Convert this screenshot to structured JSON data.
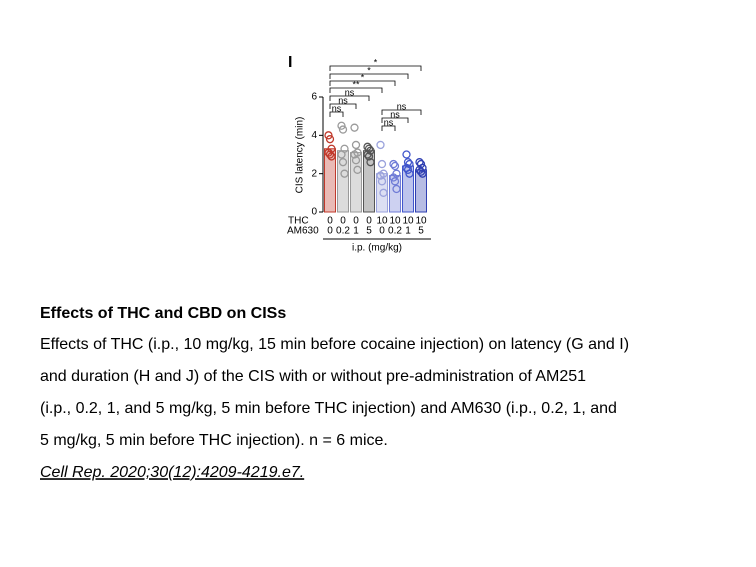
{
  "panel_label": "I",
  "chart_data": {
    "type": "bar",
    "y_label": "CIS latency (min)",
    "x_label": "i.p. (mg/kg)",
    "category_rows": [
      {
        "name": "THC",
        "labels": [
          "0",
          "0",
          "0",
          "0",
          "10",
          "10",
          "10",
          "10"
        ]
      },
      {
        "name": "AM630",
        "labels": [
          "0",
          "0.2",
          "1",
          "5",
          "0",
          "0.2",
          "1",
          "5"
        ]
      }
    ],
    "values": [
      3.3,
      3.2,
      3.1,
      3.2,
      2.0,
      1.9,
      2.4,
      2.2
    ],
    "points": [
      [
        4.0,
        3.8,
        3.3,
        3.1,
        3.0,
        2.9
      ],
      [
        4.5,
        4.3,
        3.3,
        3.0,
        2.6,
        2.0
      ],
      [
        4.4,
        3.5,
        3.1,
        3.0,
        2.7,
        2.2
      ],
      [
        3.4,
        3.3,
        3.2,
        3.0,
        2.9,
        2.6
      ],
      [
        3.5,
        2.5,
        2.0,
        1.9,
        1.6,
        1.0
      ],
      [
        2.5,
        2.4,
        2.0,
        1.8,
        1.6,
        1.2
      ],
      [
        3.0,
        2.6,
        2.5,
        2.3,
        2.2,
        2.0
      ],
      [
        2.6,
        2.5,
        2.3,
        2.2,
        2.1,
        2.0
      ]
    ],
    "colors": [
      "#c0392b",
      "#9a9a9a",
      "#9a9a9a",
      "#555555",
      "#9aa2dc",
      "#6f7bd6",
      "#4156cc",
      "#2f3fb2"
    ],
    "ylim": [
      0,
      6
    ],
    "yticks": [
      0,
      2,
      4,
      6
    ],
    "annotations": [
      "*",
      "*",
      "*",
      "**",
      "ns",
      "ns",
      "ns",
      "ns",
      "ns",
      "ns"
    ]
  },
  "caption": {
    "title": "Effects of THC and CBD on CISs",
    "lines": [
      "Effects of THC (i.p., 10 mg/kg, 15 min before cocaine injection) on latency (G and I)",
      "and duration (H and J) of the CIS with or without pre-administration of AM251",
      "(i.p., 0.2, 1, and 5 mg/kg, 5 min before THC injection) and AM630 (i.p., 0.2, 1, and",
      "5 mg/kg, 5 min before THC injection). n = 6 mice."
    ],
    "citation": "Cell Rep. 2020;30(12):4209-4219.e7."
  }
}
